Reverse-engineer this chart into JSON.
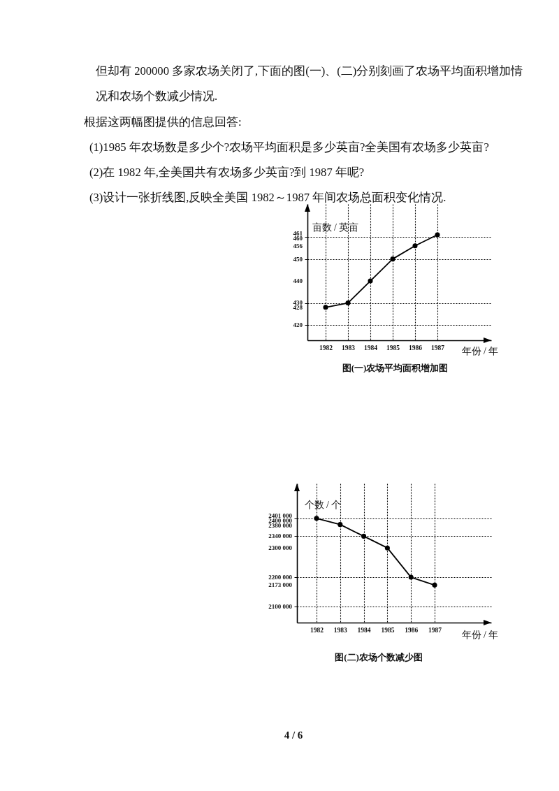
{
  "chart_data": [
    {
      "type": "line",
      "title": "图(一)农场平均面积增加图",
      "xlabel": "年份 / 年",
      "ylabel": "亩数 / 英亩",
      "categories": [
        "1982",
        "1983",
        "1984",
        "1985",
        "1986",
        "1987"
      ],
      "series": [
        {
          "color": "#000000",
          "values": [
            428,
            430,
            440,
            450,
            456,
            461
          ]
        }
      ],
      "ylim": [
        413,
        475
      ],
      "yticks": [
        420,
        428,
        430,
        440,
        450,
        456,
        460,
        461
      ],
      "grid": true,
      "marker": "circle",
      "line_style": "solid",
      "annotations": [
        "但却有 200000 多家农场关闭了,下面的图(一)、(二)分别刻画了农场平均面积增加情况和农场个数减少情况.",
        "根据这两幅图提供的信息回答:",
        "(1)1985 年农场数是多少个?农场平均面积是多少英亩?全美国有农场多少英亩?",
        "(2)在 1982 年,全美国共有农场多少英亩?到 1987 年呢?",
        "(3)设计一张折线图,反映全美国 1982～1987 年间农场总面积变化情况."
      ]
    },
    {
      "type": "line",
      "title": "图(二)农场个数减少图",
      "xlabel": "年份 / 年",
      "ylabel": "个数 / 个",
      "categories": [
        "1982",
        "1983",
        "1984",
        "1985",
        "1986",
        "1987"
      ],
      "series": [
        {
          "color": "#000000",
          "values": [
            2401000,
            2380000,
            2340000,
            2300000,
            2200000,
            2173000
          ]
        }
      ],
      "ylim": [
        2045000,
        2520000
      ],
      "yticks": [
        {
          "value": 2100000,
          "label": "2100 000"
        },
        {
          "value": 2173000,
          "label": "2173 000"
        },
        {
          "value": 2200000,
          "label": "2200 000"
        },
        {
          "value": 2300000,
          "label": "2300 000"
        },
        {
          "value": 2340000,
          "label": "2340 000"
        },
        {
          "value": 2380000,
          "label": "2380 000"
        },
        {
          "value": 2400000,
          "label": "2400 000"
        },
        {
          "value": 2401000,
          "label": "2401 000"
        }
      ],
      "grid": true,
      "marker": "circle",
      "line_style": "solid",
      "annotations": [
        "4 / 6"
      ]
    }
  ]
}
